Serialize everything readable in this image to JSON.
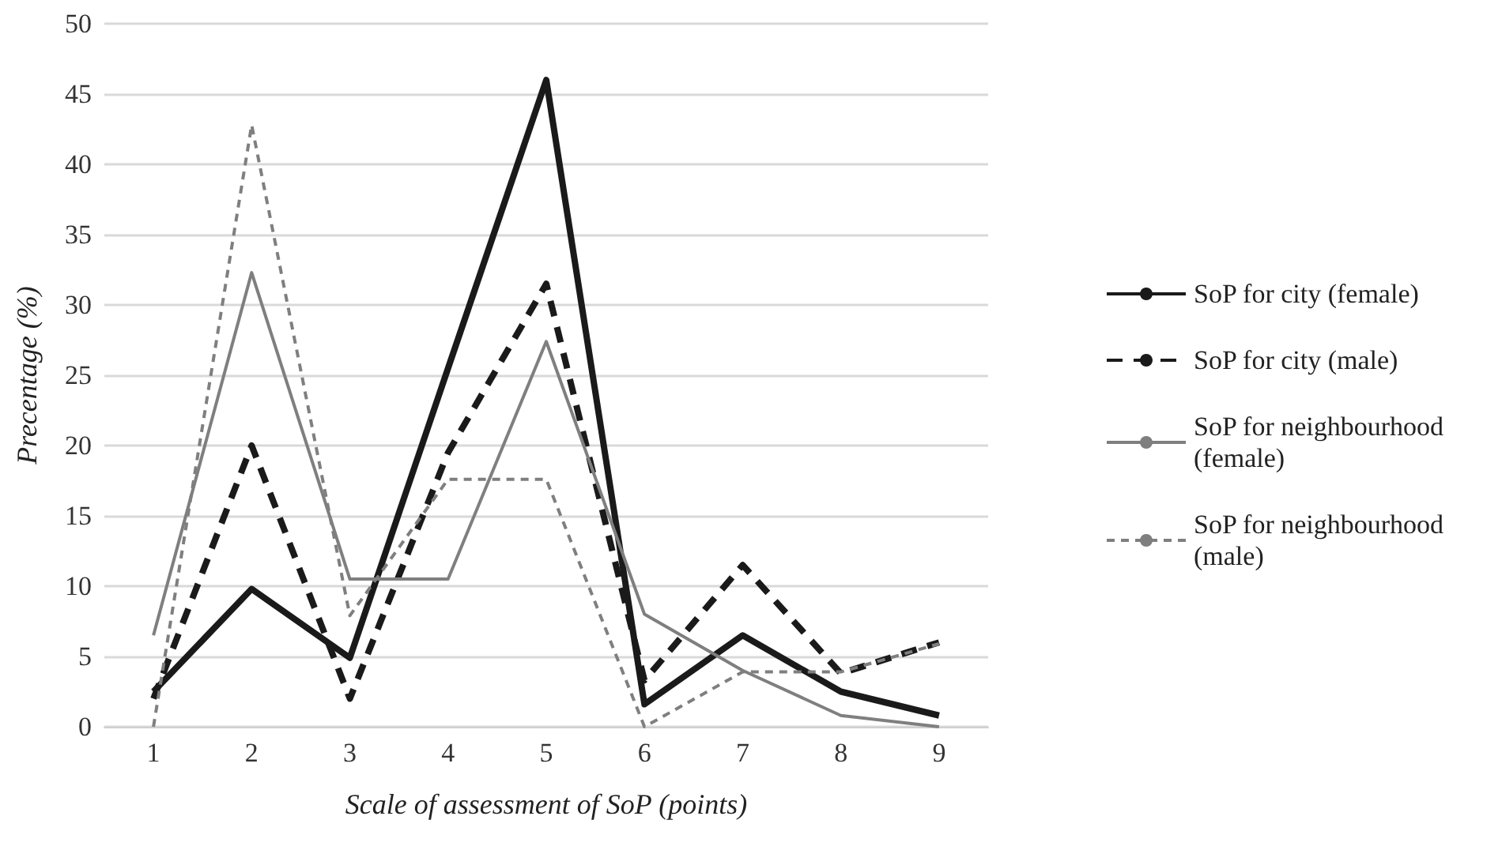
{
  "chart_data": {
    "type": "line",
    "xlabel": "Scale of assessment of SoP (points)",
    "ylabel": "Precentage (%)",
    "categories": [
      "1",
      "2",
      "3",
      "4",
      "5",
      "6",
      "7",
      "8",
      "9"
    ],
    "series": [
      {
        "name": "SoP for city (female)",
        "color": "#1a1a1a",
        "line_style": "solid",
        "values": [
          2.5,
          9.8,
          4.9,
          25.5,
          46,
          1.6,
          6.5,
          2.5,
          0.8
        ]
      },
      {
        "name": "SoP for city (male)",
        "color": "#1a1a1a",
        "line_style": "dashed",
        "values": [
          2,
          20,
          2,
          19.5,
          31.5,
          3.3,
          11.5,
          3.8,
          6
        ]
      },
      {
        "name": "SoP for neighbourhood (female)",
        "color": "#7f7f7f",
        "line_style": "solid",
        "values": [
          6.5,
          32.3,
          10.5,
          10.5,
          27.4,
          8,
          4,
          0.8,
          0
        ]
      },
      {
        "name": "SoP for neighbourhood (male)",
        "color": "#7f7f7f",
        "line_style": "dashed",
        "values": [
          0,
          42.8,
          7.9,
          17.6,
          17.6,
          0,
          3.9,
          3.9,
          5.9
        ]
      }
    ],
    "ylim": [
      0,
      50
    ],
    "yticks": [
      0,
      5,
      10,
      15,
      20,
      25,
      30,
      35,
      40,
      45,
      50
    ],
    "grid": "y",
    "legend": "right",
    "marker": "none"
  }
}
